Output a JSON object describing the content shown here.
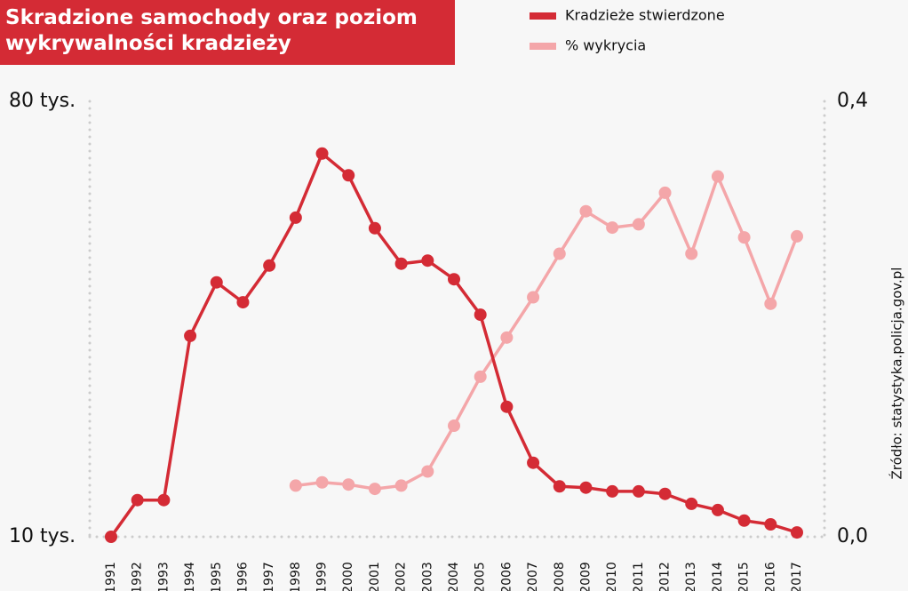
{
  "chart_data": {
    "type": "line",
    "title": "Skradzione samochody oraz poziom wykrywalności kradzieży",
    "source": "Źródło: statystyka.policja.gov.pl",
    "categories": [
      "1991",
      "1992",
      "1993",
      "1994",
      "1995",
      "1996",
      "1997",
      "1998",
      "1999",
      "2000",
      "2001",
      "2002",
      "2003",
      "2004",
      "2005",
      "2006",
      "2007",
      "2008",
      "2009",
      "2010",
      "2011",
      "2012",
      "2013",
      "2014",
      "2015",
      "2016",
      "2017"
    ],
    "series": [
      {
        "name": "Kradzieże stwierdzone",
        "color": "#d42b35",
        "axis": "y",
        "values": [
          10000,
          15900,
          15900,
          42300,
          50900,
          47700,
          53600,
          61300,
          71600,
          68100,
          59600,
          53900,
          54400,
          51400,
          45700,
          30900,
          21900,
          18100,
          17900,
          17300,
          17300,
          16900,
          15300,
          14300,
          12600,
          12000,
          10700
        ]
      },
      {
        "name": "% wykrycia",
        "color": "#f4a6a9",
        "axis": "y2",
        "values": [
          null,
          null,
          null,
          null,
          null,
          null,
          null,
          0.047,
          0.05,
          0.048,
          0.044,
          0.047,
          0.06,
          0.102,
          0.147,
          0.183,
          0.22,
          0.26,
          0.299,
          0.284,
          0.287,
          0.316,
          0.26,
          0.331,
          0.275,
          0.214,
          0.276
        ]
      }
    ],
    "ylim": [
      10000,
      80000
    ],
    "yticks": [
      {
        "value": 80000,
        "label": "80 tys."
      },
      {
        "value": 10000,
        "label": "10 tys."
      }
    ],
    "y2lim": [
      0,
      0.4
    ],
    "y2ticks": [
      {
        "value": 0.4,
        "label": "0,4"
      },
      {
        "value": 0,
        "label": "0,0"
      }
    ]
  }
}
